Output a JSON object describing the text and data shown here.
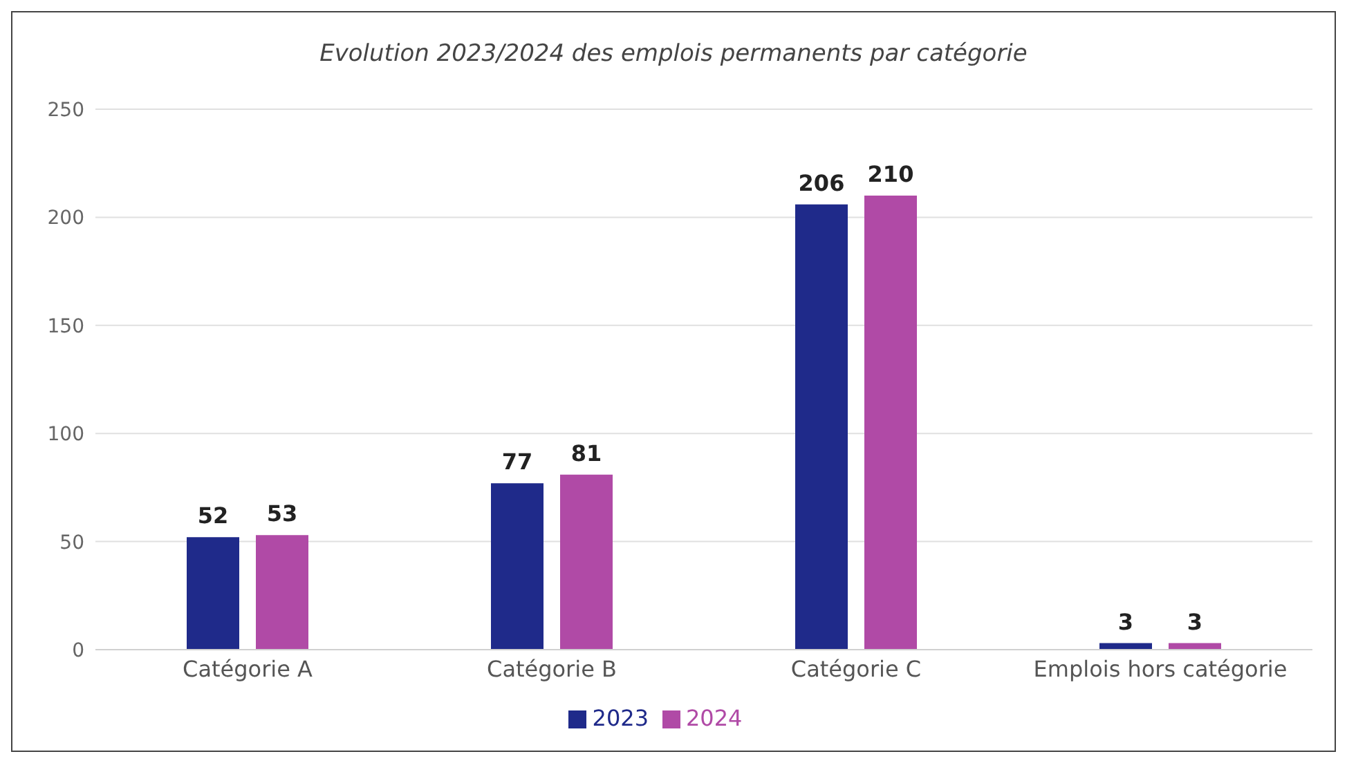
{
  "chart_data": {
    "type": "bar",
    "title": "Evolution 2023/2024 des emplois permanents par catégorie",
    "categories": [
      "Catégorie A",
      "Catégorie B",
      "Catégorie C",
      "Emplois hors catégorie"
    ],
    "series": [
      {
        "name": "2023",
        "color": "#1f2a8a",
        "values": [
          52,
          77,
          206,
          3
        ]
      },
      {
        "name": "2024",
        "color": "#b04aa6",
        "values": [
          53,
          81,
          210,
          3
        ]
      }
    ],
    "ylim": [
      0,
      250
    ],
    "yticks": [
      0,
      50,
      100,
      150,
      200,
      250
    ],
    "grid": "y",
    "legend": "bottom",
    "data_labels": true
  }
}
